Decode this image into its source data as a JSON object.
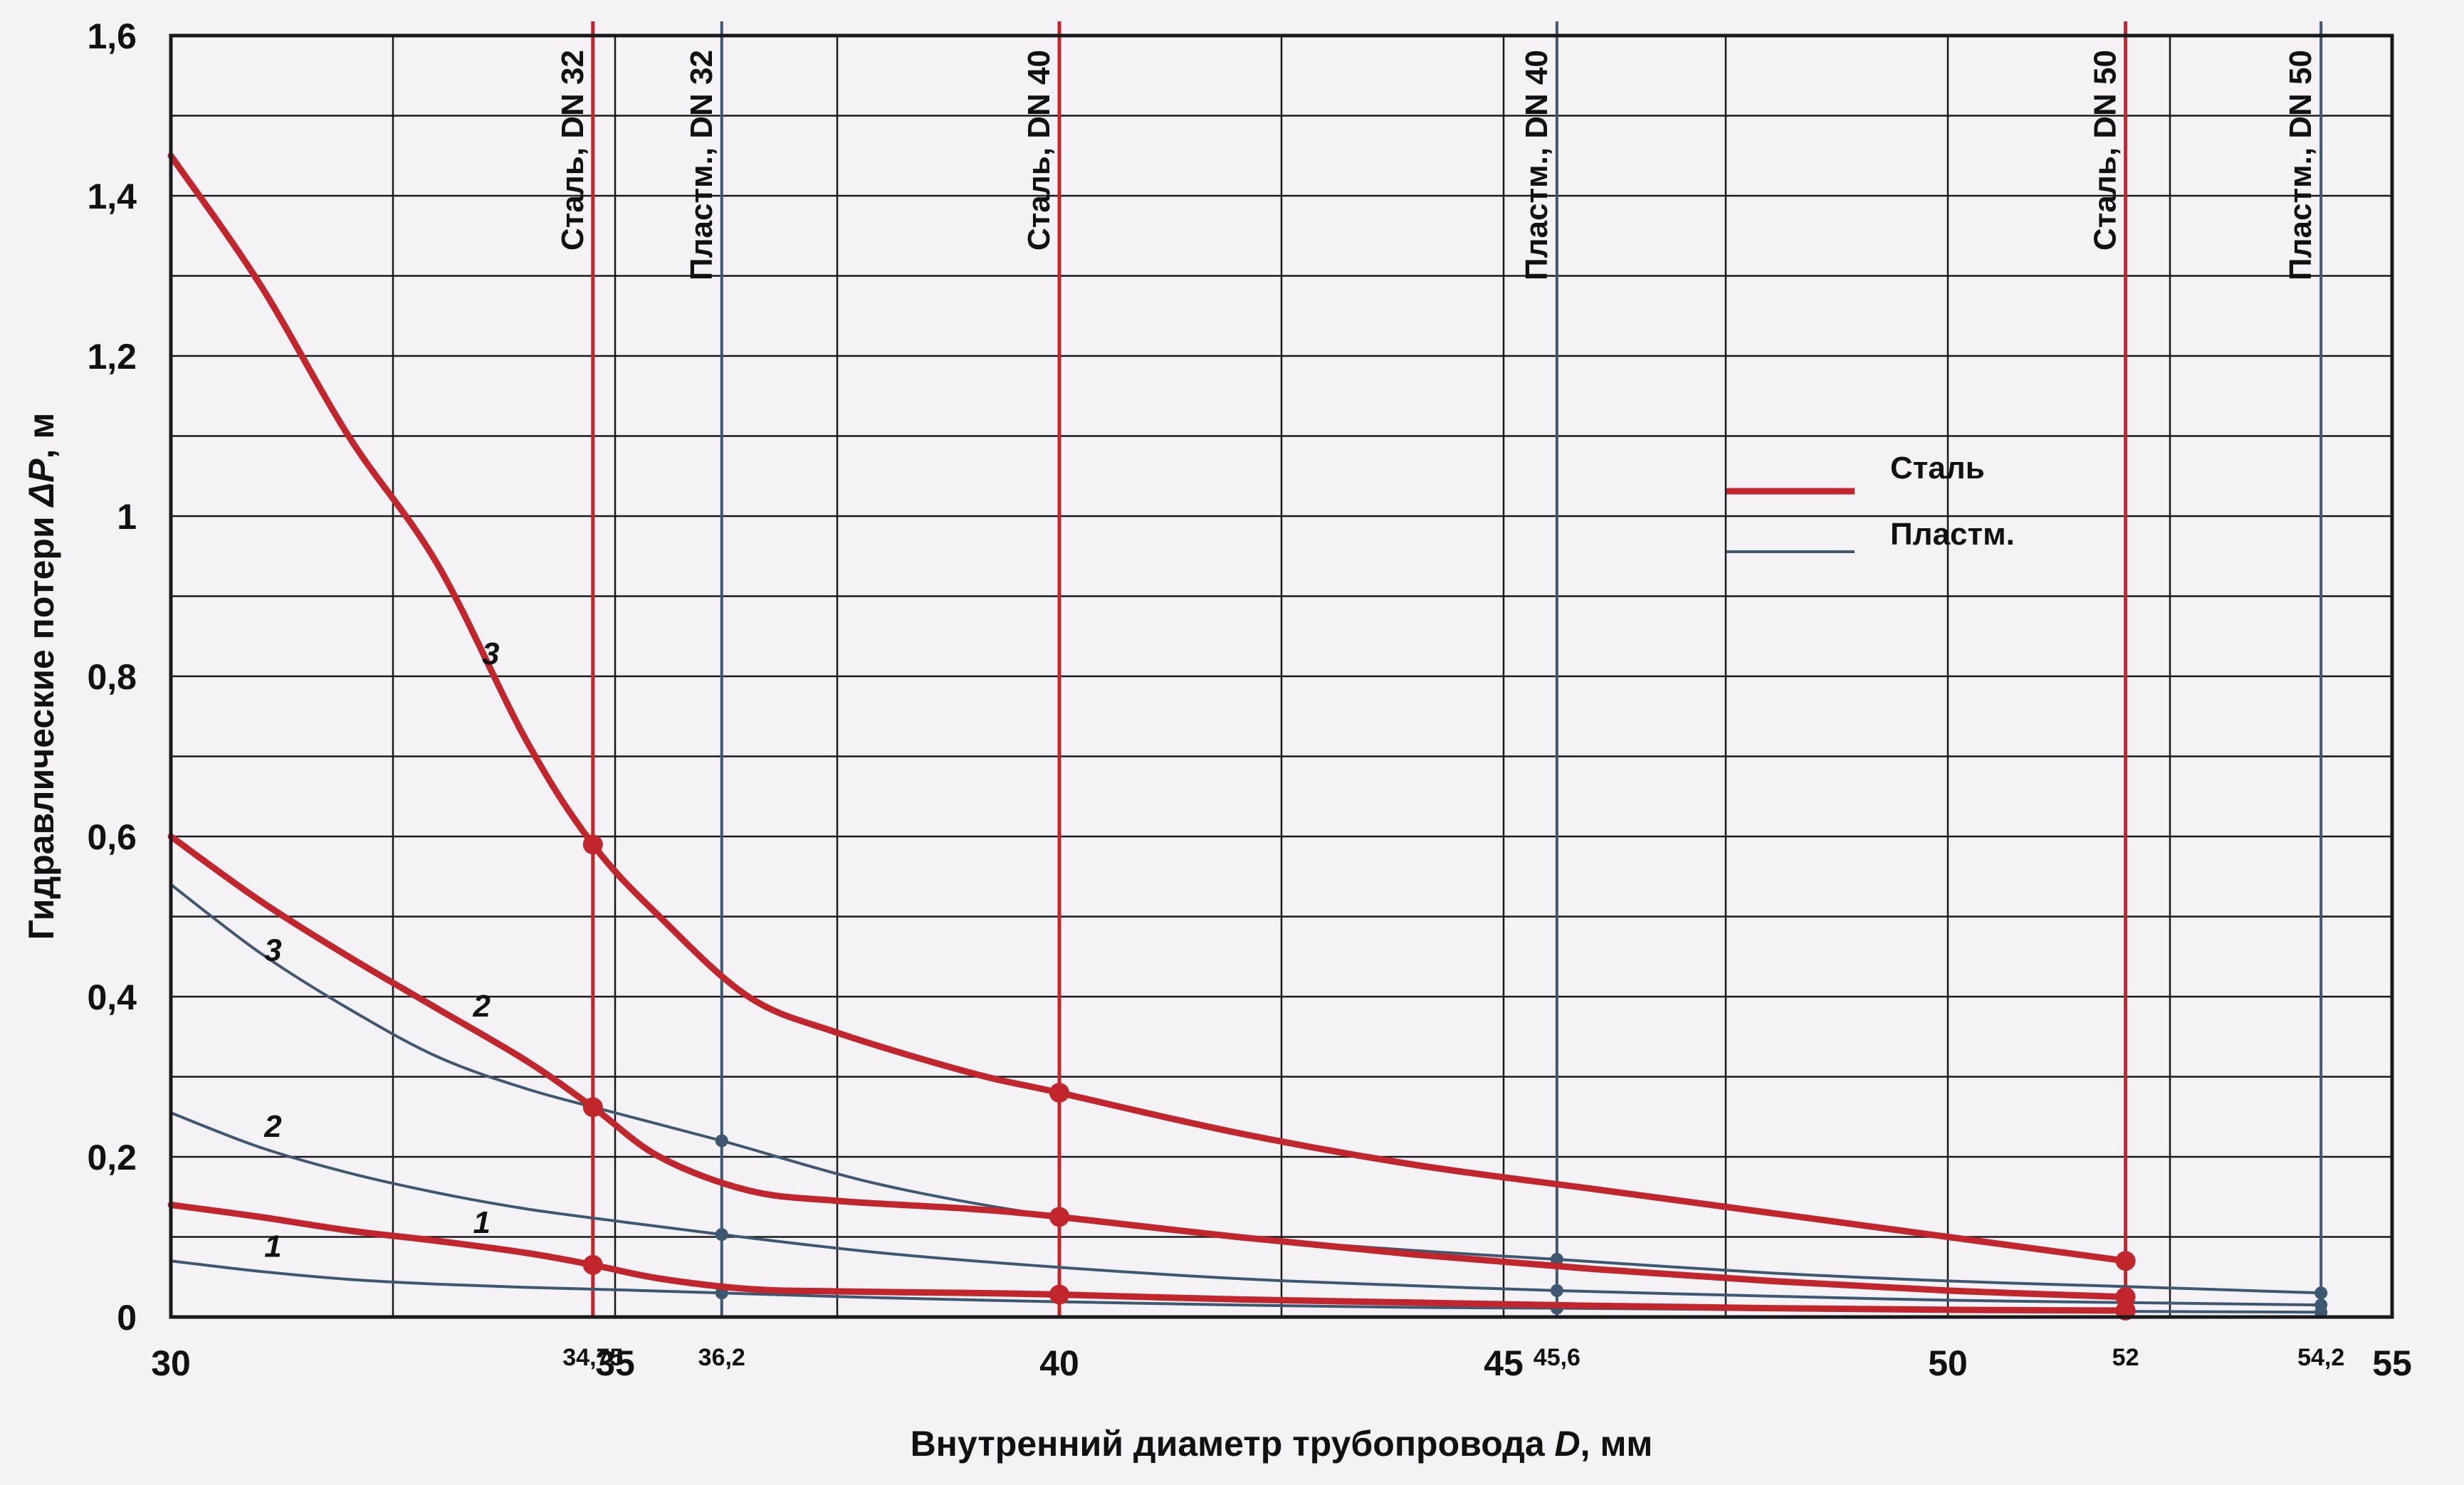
{
  "chart_data": {
    "type": "line",
    "xlabel": "Внутренний диаметр трубопровода",
    "xlabel_var": "D",
    "xlabel_unit": ", мм",
    "ylabel": "Гидравлические потери",
    "ylabel_var": "ΔP",
    "ylabel_unit": ", м",
    "xlim": [
      30,
      55
    ],
    "ylim": [
      0,
      1.6
    ],
    "grid": true,
    "x_ticks": [
      {
        "value": 30,
        "label": "30"
      },
      {
        "value": 35,
        "label": "35"
      },
      {
        "value": 40,
        "label": "40"
      },
      {
        "value": 45,
        "label": "45"
      },
      {
        "value": 50,
        "label": "50"
      },
      {
        "value": 55,
        "label": "55"
      }
    ],
    "x_minor_gridlines": [
      32.5,
      37.5,
      42.5,
      47.5,
      52.5
    ],
    "y_ticks": [
      {
        "value": 0,
        "label": "0"
      },
      {
        "value": 0.2,
        "label": "0,2"
      },
      {
        "value": 0.4,
        "label": "0,4"
      },
      {
        "value": 0.6,
        "label": "0,6"
      },
      {
        "value": 0.8,
        "label": "0,8"
      },
      {
        "value": 1.0,
        "label": "1"
      },
      {
        "value": 1.2,
        "label": "1,2"
      },
      {
        "value": 1.4,
        "label": "1,4"
      },
      {
        "value": 1.6,
        "label": "1,6"
      }
    ],
    "y_minor_gridlines": [
      0.1,
      0.3,
      0.5,
      0.7,
      0.9,
      1.1,
      1.3,
      1.5
    ],
    "x_marker_labels": [
      {
        "value": 34.75,
        "label": "34,75"
      },
      {
        "value": 36.2,
        "label": "36,2"
      },
      {
        "value": 45.6,
        "label": "45,6"
      },
      {
        "value": 52,
        "label": "52"
      },
      {
        "value": 54.2,
        "label": "54,2"
      }
    ],
    "reference_lines": [
      {
        "x": 34.75,
        "label": "Сталь, DN 32",
        "material": "steel"
      },
      {
        "x": 36.2,
        "label": "Пластм., DN 32",
        "material": "plastic"
      },
      {
        "x": 40,
        "label": "Сталь, DN 40",
        "material": "steel"
      },
      {
        "x": 45.6,
        "label": "Пластм., DN 40",
        "material": "plastic"
      },
      {
        "x": 52,
        "label": "Сталь, DN 50",
        "material": "steel"
      },
      {
        "x": 54.2,
        "label": "Пластм., DN 50",
        "material": "plastic"
      }
    ],
    "legend": {
      "position": "right-center",
      "entries": [
        {
          "name": "Сталь",
          "material": "steel"
        },
        {
          "name": "Пластм.",
          "material": "plastic"
        }
      ]
    },
    "colors": {
      "steel": "#c0262c",
      "plastic": "#3e5872",
      "grid": "#1a1a1a",
      "background": "#f4f2f6"
    },
    "series": [
      {
        "name": "Сталь",
        "curve": "3",
        "material": "steel",
        "points": [
          [
            30,
            1.45
          ],
          [
            31,
            1.29
          ],
          [
            32,
            1.1
          ],
          [
            33,
            0.94
          ],
          [
            34,
            0.72
          ],
          [
            34.75,
            0.59
          ],
          [
            35.5,
            0.5
          ],
          [
            36.5,
            0.4
          ],
          [
            37.5,
            0.355
          ],
          [
            39,
            0.305
          ],
          [
            40,
            0.28
          ],
          [
            42,
            0.23
          ],
          [
            44,
            0.19
          ],
          [
            46,
            0.16
          ],
          [
            48,
            0.13
          ],
          [
            50,
            0.1
          ],
          [
            52,
            0.07
          ]
        ],
        "markers": [
          34.75,
          40,
          52
        ],
        "label_at": [
          33.6,
          0.815
        ]
      },
      {
        "name": "Сталь",
        "curve": "2",
        "material": "steel",
        "points": [
          [
            30,
            0.6
          ],
          [
            31,
            0.52
          ],
          [
            32,
            0.45
          ],
          [
            33,
            0.385
          ],
          [
            34,
            0.32
          ],
          [
            34.75,
            0.262
          ],
          [
            35.5,
            0.2
          ],
          [
            36.5,
            0.158
          ],
          [
            37.5,
            0.145
          ],
          [
            39,
            0.135
          ],
          [
            40,
            0.125
          ],
          [
            42,
            0.1
          ],
          [
            44,
            0.078
          ],
          [
            46,
            0.06
          ],
          [
            48,
            0.045
          ],
          [
            50,
            0.033
          ],
          [
            52,
            0.025
          ]
        ],
        "markers": [
          34.75,
          40,
          52
        ],
        "label_at": [
          33.5,
          0.375
        ]
      },
      {
        "name": "Сталь",
        "curve": "1",
        "material": "steel",
        "points": [
          [
            30,
            0.14
          ],
          [
            31,
            0.125
          ],
          [
            32,
            0.108
          ],
          [
            33,
            0.095
          ],
          [
            34,
            0.08
          ],
          [
            34.75,
            0.065
          ],
          [
            35.5,
            0.048
          ],
          [
            36.5,
            0.035
          ],
          [
            37.5,
            0.032
          ],
          [
            39,
            0.03
          ],
          [
            40,
            0.028
          ],
          [
            42,
            0.022
          ],
          [
            44,
            0.018
          ],
          [
            46,
            0.014
          ],
          [
            48,
            0.011
          ],
          [
            50,
            0.009
          ],
          [
            52,
            0.008
          ]
        ],
        "markers": [
          34.75,
          40,
          52
        ],
        "label_at": [
          33.5,
          0.105
        ]
      },
      {
        "name": "Пластм.",
        "curve": "3",
        "material": "plastic",
        "points": [
          [
            30,
            0.54
          ],
          [
            31,
            0.455
          ],
          [
            32,
            0.385
          ],
          [
            33,
            0.325
          ],
          [
            34,
            0.285
          ],
          [
            35,
            0.255
          ],
          [
            36.2,
            0.22
          ],
          [
            38,
            0.165
          ],
          [
            40,
            0.125
          ],
          [
            42,
            0.1
          ],
          [
            44,
            0.083
          ],
          [
            45.6,
            0.072
          ],
          [
            48,
            0.055
          ],
          [
            50,
            0.045
          ],
          [
            52,
            0.038
          ],
          [
            54.2,
            0.03
          ]
        ],
        "markers": [
          36.2,
          45.6,
          54.2
        ],
        "label_at": [
          31.15,
          0.445
        ]
      },
      {
        "name": "Пластм.",
        "curve": "2",
        "material": "plastic",
        "points": [
          [
            30,
            0.255
          ],
          [
            31,
            0.212
          ],
          [
            32,
            0.18
          ],
          [
            33,
            0.155
          ],
          [
            34,
            0.135
          ],
          [
            35,
            0.12
          ],
          [
            36.2,
            0.103
          ],
          [
            38,
            0.08
          ],
          [
            40,
            0.062
          ],
          [
            42,
            0.048
          ],
          [
            44,
            0.039
          ],
          [
            45.6,
            0.033
          ],
          [
            48,
            0.026
          ],
          [
            50,
            0.021
          ],
          [
            52,
            0.018
          ],
          [
            54.2,
            0.015
          ]
        ],
        "markers": [
          36.2,
          45.6,
          54.2
        ],
        "label_at": [
          31.15,
          0.225
        ]
      },
      {
        "name": "Пластм.",
        "curve": "1",
        "material": "plastic",
        "points": [
          [
            30,
            0.07
          ],
          [
            31,
            0.057
          ],
          [
            32,
            0.047
          ],
          [
            33,
            0.041
          ],
          [
            34,
            0.037
          ],
          [
            35,
            0.034
          ],
          [
            36.2,
            0.03
          ],
          [
            38,
            0.024
          ],
          [
            40,
            0.019
          ],
          [
            42,
            0.015
          ],
          [
            44,
            0.012
          ],
          [
            45.6,
            0.011
          ],
          [
            48,
            0.009
          ],
          [
            50,
            0.008
          ],
          [
            52,
            0.007
          ],
          [
            54.2,
            0.006
          ]
        ],
        "markers": [
          36.2,
          45.6,
          54.2
        ],
        "label_at": [
          31.15,
          0.075
        ]
      }
    ]
  }
}
